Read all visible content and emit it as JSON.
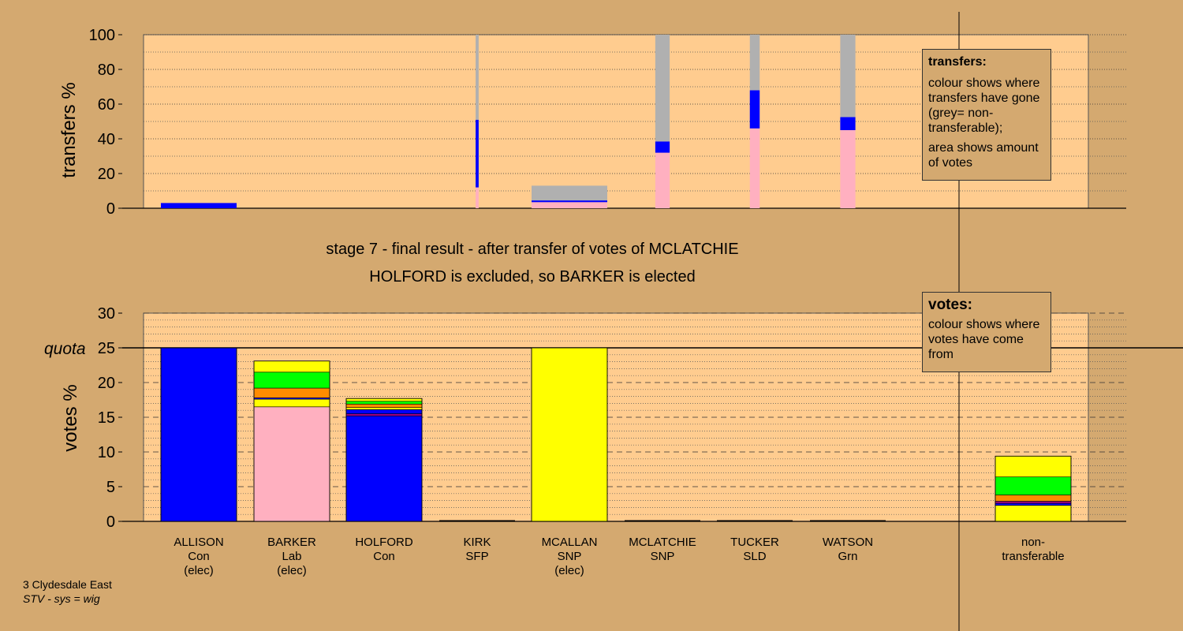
{
  "footer": {
    "constituency": "3 Clydesdale East",
    "system": "STV - sys = wig"
  },
  "titles": {
    "stage": "stage 7 - final result - after transfer of votes of MCLATCHIE",
    "outcome": "HOLFORD is excluded, so BARKER is elected"
  },
  "legends": {
    "transfers": {
      "heading": "transfers:",
      "line1": "colour shows where transfers have gone (grey= non-transferable);",
      "line2": "area shows amount of votes"
    },
    "votes": {
      "heading": "votes:",
      "line1": "colour shows where votes have come from"
    }
  },
  "colors": {
    "background": "#d4a970",
    "plot_area": "#ffcc8f",
    "Con": "#0000ff",
    "Lab": "#ffb0c0",
    "SNP": "#ffff00",
    "SLD": "#ff8c00",
    "Grn": "#00ff00",
    "SFP": "#a00080",
    "nontransferable": "#b0b0b0"
  },
  "candidates": [
    {
      "name": "ALLISON",
      "party": "Con",
      "status": "(elec)"
    },
    {
      "name": "BARKER",
      "party": "Lab",
      "status": "(elec)"
    },
    {
      "name": "HOLFORD",
      "party": "Con",
      "status": ""
    },
    {
      "name": "KIRK",
      "party": "SFP",
      "status": ""
    },
    {
      "name": "MCALLAN",
      "party": "SNP",
      "status": "(elec)"
    },
    {
      "name": "MCLATCHIE",
      "party": "SNP",
      "status": ""
    },
    {
      "name": "TUCKER",
      "party": "SLD",
      "status": ""
    },
    {
      "name": "WATSON",
      "party": "Grn",
      "status": ""
    }
  ],
  "nontransferable_label": "non-\ntransferable",
  "chart_data": [
    {
      "type": "bar",
      "name": "transfers",
      "ylabel": "transfers %",
      "ylim": [
        0,
        100
      ],
      "yticks": [
        0,
        20,
        40,
        60,
        80,
        100
      ],
      "grid": true,
      "categories": [
        "ALLISON",
        "BARKER",
        "HOLFORD",
        "KIRK",
        "MCALLAN",
        "MCLATCHIE",
        "TUCKER",
        "WATSON"
      ],
      "bars": [
        {
          "candidate": "ALLISON",
          "width_fraction": 1.0,
          "segments": [
            {
              "party": "Con",
              "from": 0,
              "to": 3
            }
          ]
        },
        {
          "candidate": "KIRK",
          "width_fraction": 0.04,
          "segments": [
            {
              "party": "Lab",
              "from": 0,
              "to": 12
            },
            {
              "party": "Con",
              "from": 12,
              "to": 51
            },
            {
              "party": "nontransferable",
              "from": 51,
              "to": 100
            }
          ]
        },
        {
          "candidate": "MCALLAN",
          "width_fraction": 1.0,
          "segments": [
            {
              "party": "Lab",
              "from": 0,
              "to": 3.5
            },
            {
              "party": "Con",
              "from": 3.5,
              "to": 4.5
            },
            {
              "party": "nontransferable",
              "from": 4.5,
              "to": 13
            }
          ]
        },
        {
          "candidate": "MCLATCHIE",
          "width_fraction": 0.19,
          "segments": [
            {
              "party": "Lab",
              "from": 0,
              "to": 32
            },
            {
              "party": "Con",
              "from": 32,
              "to": 38.5
            },
            {
              "party": "nontransferable",
              "from": 38.5,
              "to": 100
            }
          ]
        },
        {
          "candidate": "TUCKER",
          "width_fraction": 0.13,
          "segments": [
            {
              "party": "Lab",
              "from": 0,
              "to": 46
            },
            {
              "party": "Con",
              "from": 46,
              "to": 68
            },
            {
              "party": "nontransferable",
              "from": 68,
              "to": 100
            }
          ]
        },
        {
          "candidate": "WATSON",
          "width_fraction": 0.2,
          "segments": [
            {
              "party": "Lab",
              "from": 0,
              "to": 45
            },
            {
              "party": "Con",
              "from": 45,
              "to": 52.5
            },
            {
              "party": "nontransferable",
              "from": 52.5,
              "to": 100
            }
          ]
        }
      ]
    },
    {
      "type": "bar",
      "name": "votes",
      "ylabel": "votes %",
      "ylim": [
        0,
        30
      ],
      "yticks": [
        0,
        5,
        10,
        15,
        20,
        25,
        30
      ],
      "quota": 25,
      "quota_label": "quota",
      "grid": true,
      "categories": [
        "ALLISON",
        "BARKER",
        "HOLFORD",
        "KIRK",
        "MCALLAN",
        "MCLATCHIE",
        "TUCKER",
        "WATSON",
        "non-transferable"
      ],
      "bars": [
        {
          "candidate": "ALLISON",
          "segments": [
            {
              "party": "Con",
              "from": 0,
              "to": 25
            }
          ]
        },
        {
          "candidate": "BARKER",
          "segments": [
            {
              "party": "Lab",
              "from": 0,
              "to": 16.5
            },
            {
              "party": "SNP",
              "from": 16.5,
              "to": 17.6
            },
            {
              "party": "Con",
              "from": 17.6,
              "to": 17.8
            },
            {
              "party": "SLD",
              "from": 17.8,
              "to": 19.2
            },
            {
              "party": "Grn",
              "from": 19.2,
              "to": 21.5
            },
            {
              "party": "SNP",
              "from": 21.5,
              "to": 23.1
            }
          ]
        },
        {
          "candidate": "HOLFORD",
          "segments": [
            {
              "party": "Con",
              "from": 0,
              "to": 15.2
            },
            {
              "party": "SFP",
              "from": 15.2,
              "to": 15.5
            },
            {
              "party": "Con",
              "from": 15.5,
              "to": 16.1
            },
            {
              "party": "SNP",
              "from": 16.1,
              "to": 16.4
            },
            {
              "party": "SLD",
              "from": 16.4,
              "to": 16.9
            },
            {
              "party": "Grn",
              "from": 16.9,
              "to": 17.3
            },
            {
              "party": "SNP",
              "from": 17.3,
              "to": 17.7
            }
          ]
        },
        {
          "candidate": "KIRK",
          "segments": []
        },
        {
          "candidate": "MCALLAN",
          "segments": [
            {
              "party": "SNP",
              "from": 0,
              "to": 25
            }
          ]
        },
        {
          "candidate": "MCLATCHIE",
          "segments": []
        },
        {
          "candidate": "TUCKER",
          "segments": []
        },
        {
          "candidate": "WATSON",
          "segments": []
        },
        {
          "candidate": "non-transferable",
          "segments": [
            {
              "party": "SNP",
              "from": 0,
              "to": 2.3
            },
            {
              "party": "Con",
              "from": 2.3,
              "to": 2.6
            },
            {
              "party": "SFP",
              "from": 2.6,
              "to": 2.9
            },
            {
              "party": "SLD",
              "from": 2.9,
              "to": 3.8
            },
            {
              "party": "Grn",
              "from": 3.8,
              "to": 6.4
            },
            {
              "party": "SNP",
              "from": 6.4,
              "to": 9.4
            }
          ]
        }
      ]
    }
  ]
}
